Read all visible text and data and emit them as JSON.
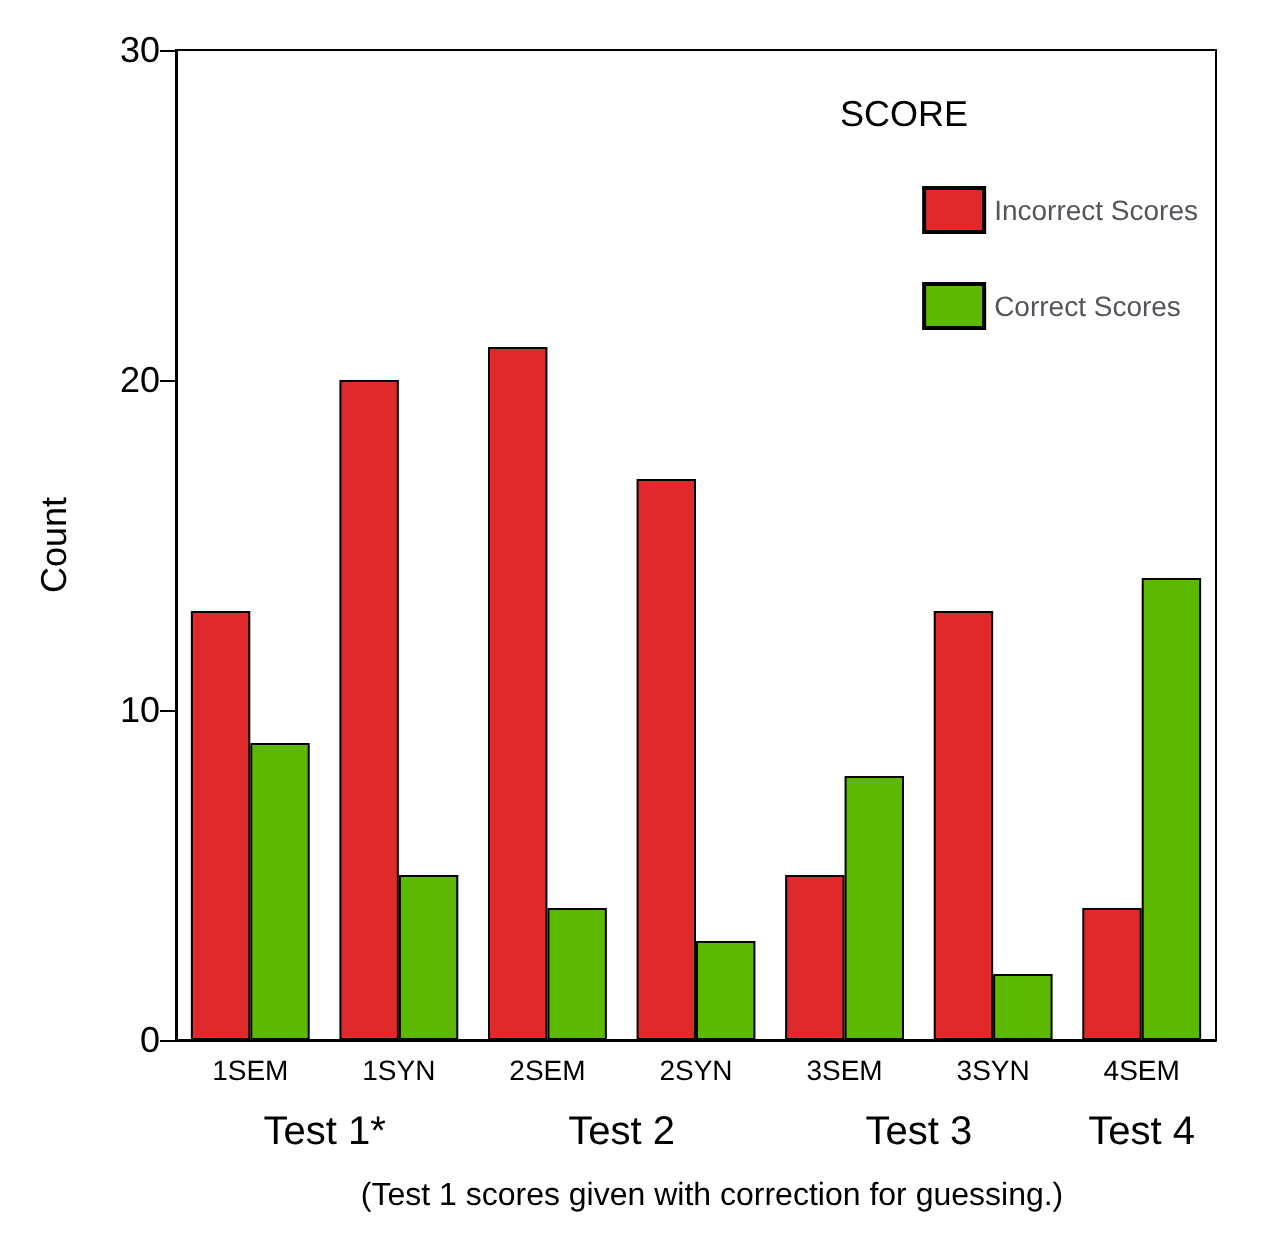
{
  "chart_data": {
    "type": "bar",
    "ylabel": "Count",
    "legend_title": "SCORE",
    "categories": [
      "1SEM",
      "1SYN",
      "2SEM",
      "2SYN",
      "3SEM",
      "3SYN",
      "4SEM"
    ],
    "series": [
      {
        "name": "Incorrect Scores",
        "color": "#e0292b",
        "values": [
          13,
          20,
          21,
          17,
          5,
          13,
          4
        ]
      },
      {
        "name": "Correct Scores",
        "color": "#5cb800",
        "values": [
          9,
          5,
          4,
          3,
          8,
          2,
          14
        ]
      }
    ],
    "ylim": [
      0,
      30
    ],
    "yticks": [
      0,
      10,
      20,
      30
    ],
    "grid": false,
    "legend": "top right",
    "annotations": [
      "Test 1*",
      "Test 2",
      "Test 3",
      "Test 4",
      "(Test 1 scores given with correction for guessing.)"
    ]
  }
}
